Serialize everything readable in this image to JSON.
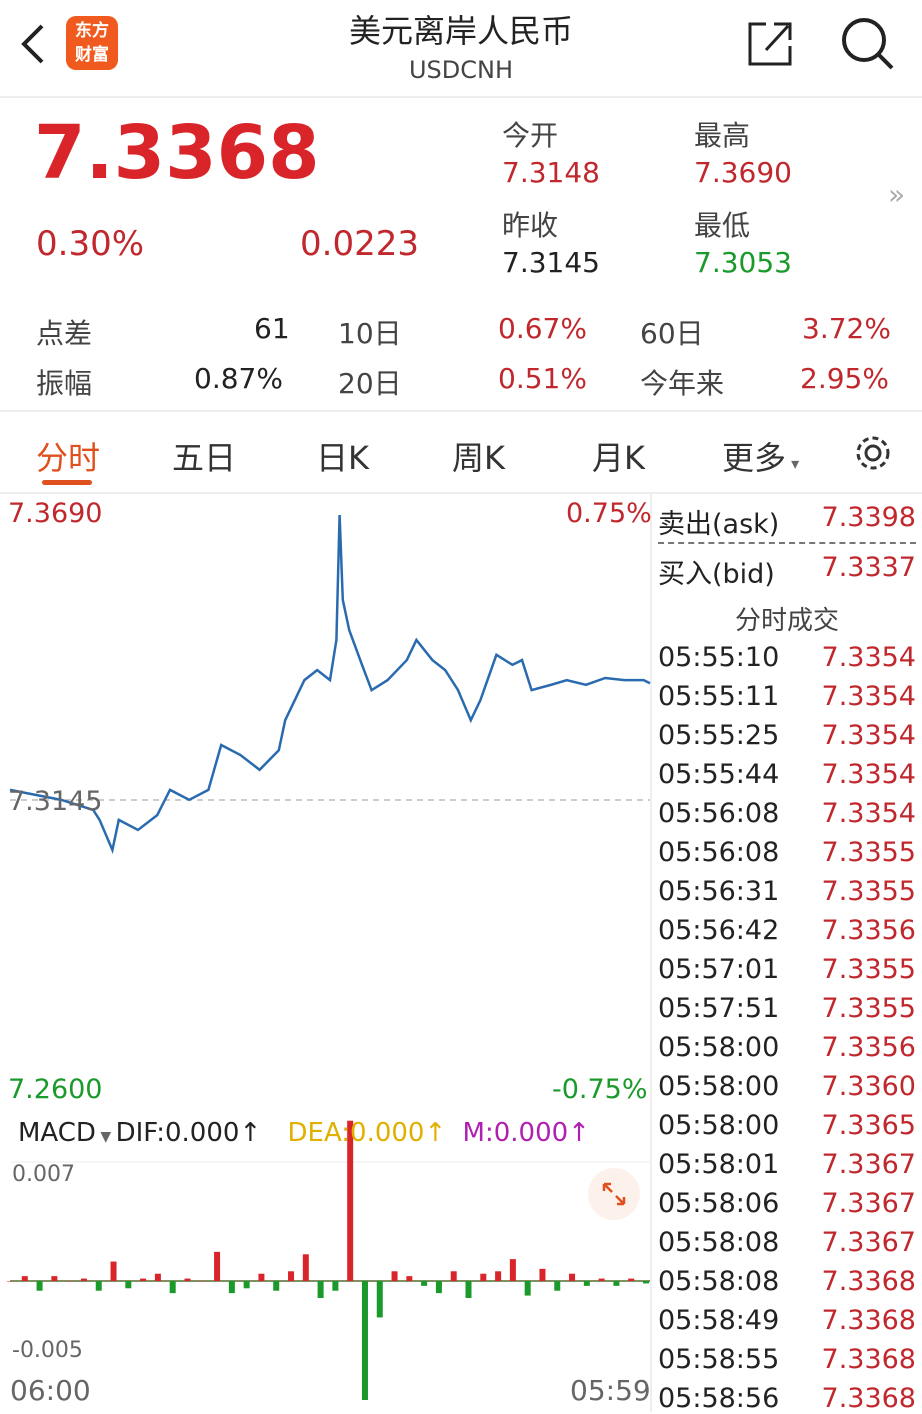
{
  "header": {
    "title": "美元离岸人民币",
    "code": "USDCNH",
    "logo": "东方财富"
  },
  "quote": {
    "price": "7.3368",
    "change_pct": "0.30%",
    "change": "0.0223",
    "open_label": "今开",
    "open": "7.3148",
    "high_label": "最高",
    "high": "7.3690",
    "prev_label": "昨收",
    "prev": "7.3145",
    "low_label": "最低",
    "low": "7.3053"
  },
  "stats": [
    {
      "label": "点差",
      "value": "61"
    },
    {
      "label": "10日",
      "value": "0.67%"
    },
    {
      "label": "60日",
      "value": "3.72%"
    },
    {
      "label": "振幅",
      "value": "0.87%"
    },
    {
      "label": "20日",
      "value": "0.51%"
    },
    {
      "label": "今年来",
      "value": "2.95%"
    }
  ],
  "tabs": [
    "分时",
    "五日",
    "日K",
    "周K",
    "月K",
    "更多"
  ],
  "colors": {
    "red": "#d9252a",
    "green": "#1a9a2a",
    "line": "#2a6bb0",
    "accent": "#f05a1e"
  },
  "chart_data": {
    "type": "line",
    "y_top": "7.3690",
    "y_bottom": "7.2600",
    "pct_top": "0.75%",
    "pct_bottom": "-0.75%",
    "baseline": "7.3145",
    "x_start": "06:00",
    "x_end": "05:59",
    "ylim": [
      7.26,
      7.369
    ],
    "x": [
      0,
      8,
      13,
      14,
      16,
      17,
      20,
      23,
      25,
      28,
      31,
      33,
      36,
      39,
      42,
      43,
      46,
      48,
      50,
      51,
      51.5,
      52,
      53,
      55,
      56.5,
      59,
      62,
      63.5,
      66,
      68,
      70,
      72,
      73.5,
      76,
      78.5,
      80,
      81.5,
      84.5,
      87,
      90,
      93,
      96,
      99,
      100
    ],
    "prices": [
      7.3169,
      7.315,
      7.3131,
      7.3112,
      7.3055,
      7.3112,
      7.3093,
      7.3121,
      7.3169,
      7.315,
      7.3169,
      7.3254,
      7.3235,
      7.3207,
      7.3244,
      7.3301,
      7.3377,
      7.3396,
      7.3377,
      7.3453,
      7.369,
      7.3529,
      7.3472,
      7.3406,
      7.3358,
      7.3377,
      7.3415,
      7.3453,
      7.3415,
      7.3396,
      7.3358,
      7.3301,
      7.3339,
      7.3425,
      7.3406,
      7.3415,
      7.3358,
      7.3368,
      7.3377,
      7.3368,
      7.3381,
      7.3377,
      7.3377,
      7.3371
    ]
  },
  "macd": {
    "label": "MACD",
    "dif": "DIF:0.000",
    "dea": "DEA:0.000",
    "m": "M:0.000",
    "up": "↑",
    "y_top": "0.007",
    "y_bottom": "-0.005",
    "hist": [
      0,
      0.0002,
      -0.0004,
      0.0002,
      0,
      0.0001,
      -0.0004,
      0.0008,
      -0.0003,
      0.0001,
      0.0003,
      -0.0005,
      0.0001,
      0,
      0.0012,
      -0.0005,
      -0.0003,
      0.0003,
      -0.0004,
      0.0004,
      0.0011,
      -0.0007,
      -0.0004,
      0.0066,
      -0.0049,
      -0.0015,
      0.0004,
      0.0002,
      -0.0002,
      -0.0005,
      0.0004,
      -0.0007,
      0.0003,
      0.0004,
      0.0009,
      -0.0006,
      0.0005,
      -0.0004,
      0.0003,
      -0.0002,
      0.0001,
      -0.0002,
      0.0001,
      -0.0001
    ]
  },
  "orderbook": {
    "ask_label": "卖出(ask)",
    "ask": "7.3398",
    "bid_label": "买入(bid)",
    "bid": "7.3337",
    "trades_title": "分时成交",
    "trades": [
      [
        "05:55:10",
        "7.3354"
      ],
      [
        "05:55:11",
        "7.3354"
      ],
      [
        "05:55:25",
        "7.3354"
      ],
      [
        "05:55:44",
        "7.3354"
      ],
      [
        "05:56:08",
        "7.3354"
      ],
      [
        "05:56:08",
        "7.3355"
      ],
      [
        "05:56:31",
        "7.3355"
      ],
      [
        "05:56:42",
        "7.3356"
      ],
      [
        "05:57:01",
        "7.3355"
      ],
      [
        "05:57:51",
        "7.3355"
      ],
      [
        "05:58:00",
        "7.3356"
      ],
      [
        "05:58:00",
        "7.3360"
      ],
      [
        "05:58:00",
        "7.3365"
      ],
      [
        "05:58:01",
        "7.3367"
      ],
      [
        "05:58:06",
        "7.3367"
      ],
      [
        "05:58:08",
        "7.3367"
      ],
      [
        "05:58:08",
        "7.3368"
      ],
      [
        "05:58:49",
        "7.3368"
      ],
      [
        "05:58:55",
        "7.3368"
      ],
      [
        "05:58:56",
        "7.3368"
      ]
    ]
  }
}
